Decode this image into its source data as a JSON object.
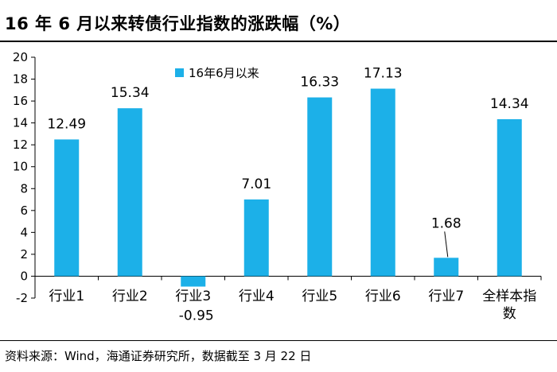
{
  "title": "16 年 6 月以来转债行业指数的涨跌幅（%）",
  "source": "资料来源：Wind，海通证券研究所，数据截至 3 月 22 日",
  "chart_data": {
    "type": "bar",
    "categories": [
      "行业1",
      "行业2",
      "行业3",
      "行业4",
      "行业5",
      "行业6",
      "行业7",
      [
        "全样本指",
        "数"
      ]
    ],
    "series": [
      {
        "name": "16年6月以来",
        "values": [
          12.49,
          15.34,
          -0.95,
          7.01,
          16.33,
          17.13,
          1.68,
          14.34
        ],
        "value_labels": [
          "12.49",
          "15.34",
          "-0.95",
          "7.01",
          "16.33",
          "17.13",
          "1.68",
          "14.34"
        ],
        "color": "#1CB0E8"
      }
    ],
    "ylim": [
      -2,
      20
    ],
    "yticks": [
      "-2",
      "0",
      "2",
      "4",
      "6",
      "8",
      "10",
      "12",
      "14",
      "16",
      "18",
      "20"
    ],
    "grid": false,
    "legend": "top-left"
  }
}
